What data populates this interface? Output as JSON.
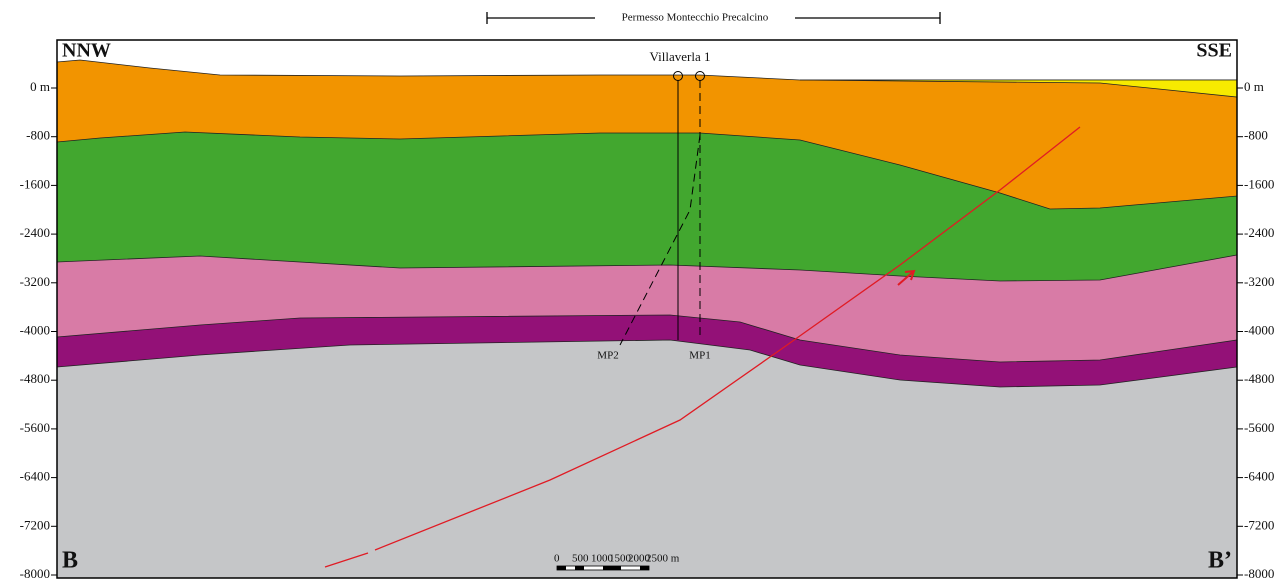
{
  "header": {
    "title": "Permesso Montecchio Precalcino"
  },
  "section": {
    "left_end": "B",
    "right_end": "B’",
    "left_direction": "NNW",
    "right_direction": "SSE"
  },
  "depth_axis": {
    "ticks": [
      {
        "value": 0,
        "label": "0 m"
      },
      -800,
      -1600,
      -2400,
      -3200,
      -4000,
      -4800,
      -5600,
      -6400,
      -7200,
      -8000
    ]
  },
  "well": {
    "name": "Villaverla 1",
    "branches": [
      "MP2",
      "MP1"
    ]
  },
  "scale_bar": {
    "labels": [
      "0",
      "500",
      "1000",
      "1500",
      "2000",
      "2500 m"
    ]
  }
}
